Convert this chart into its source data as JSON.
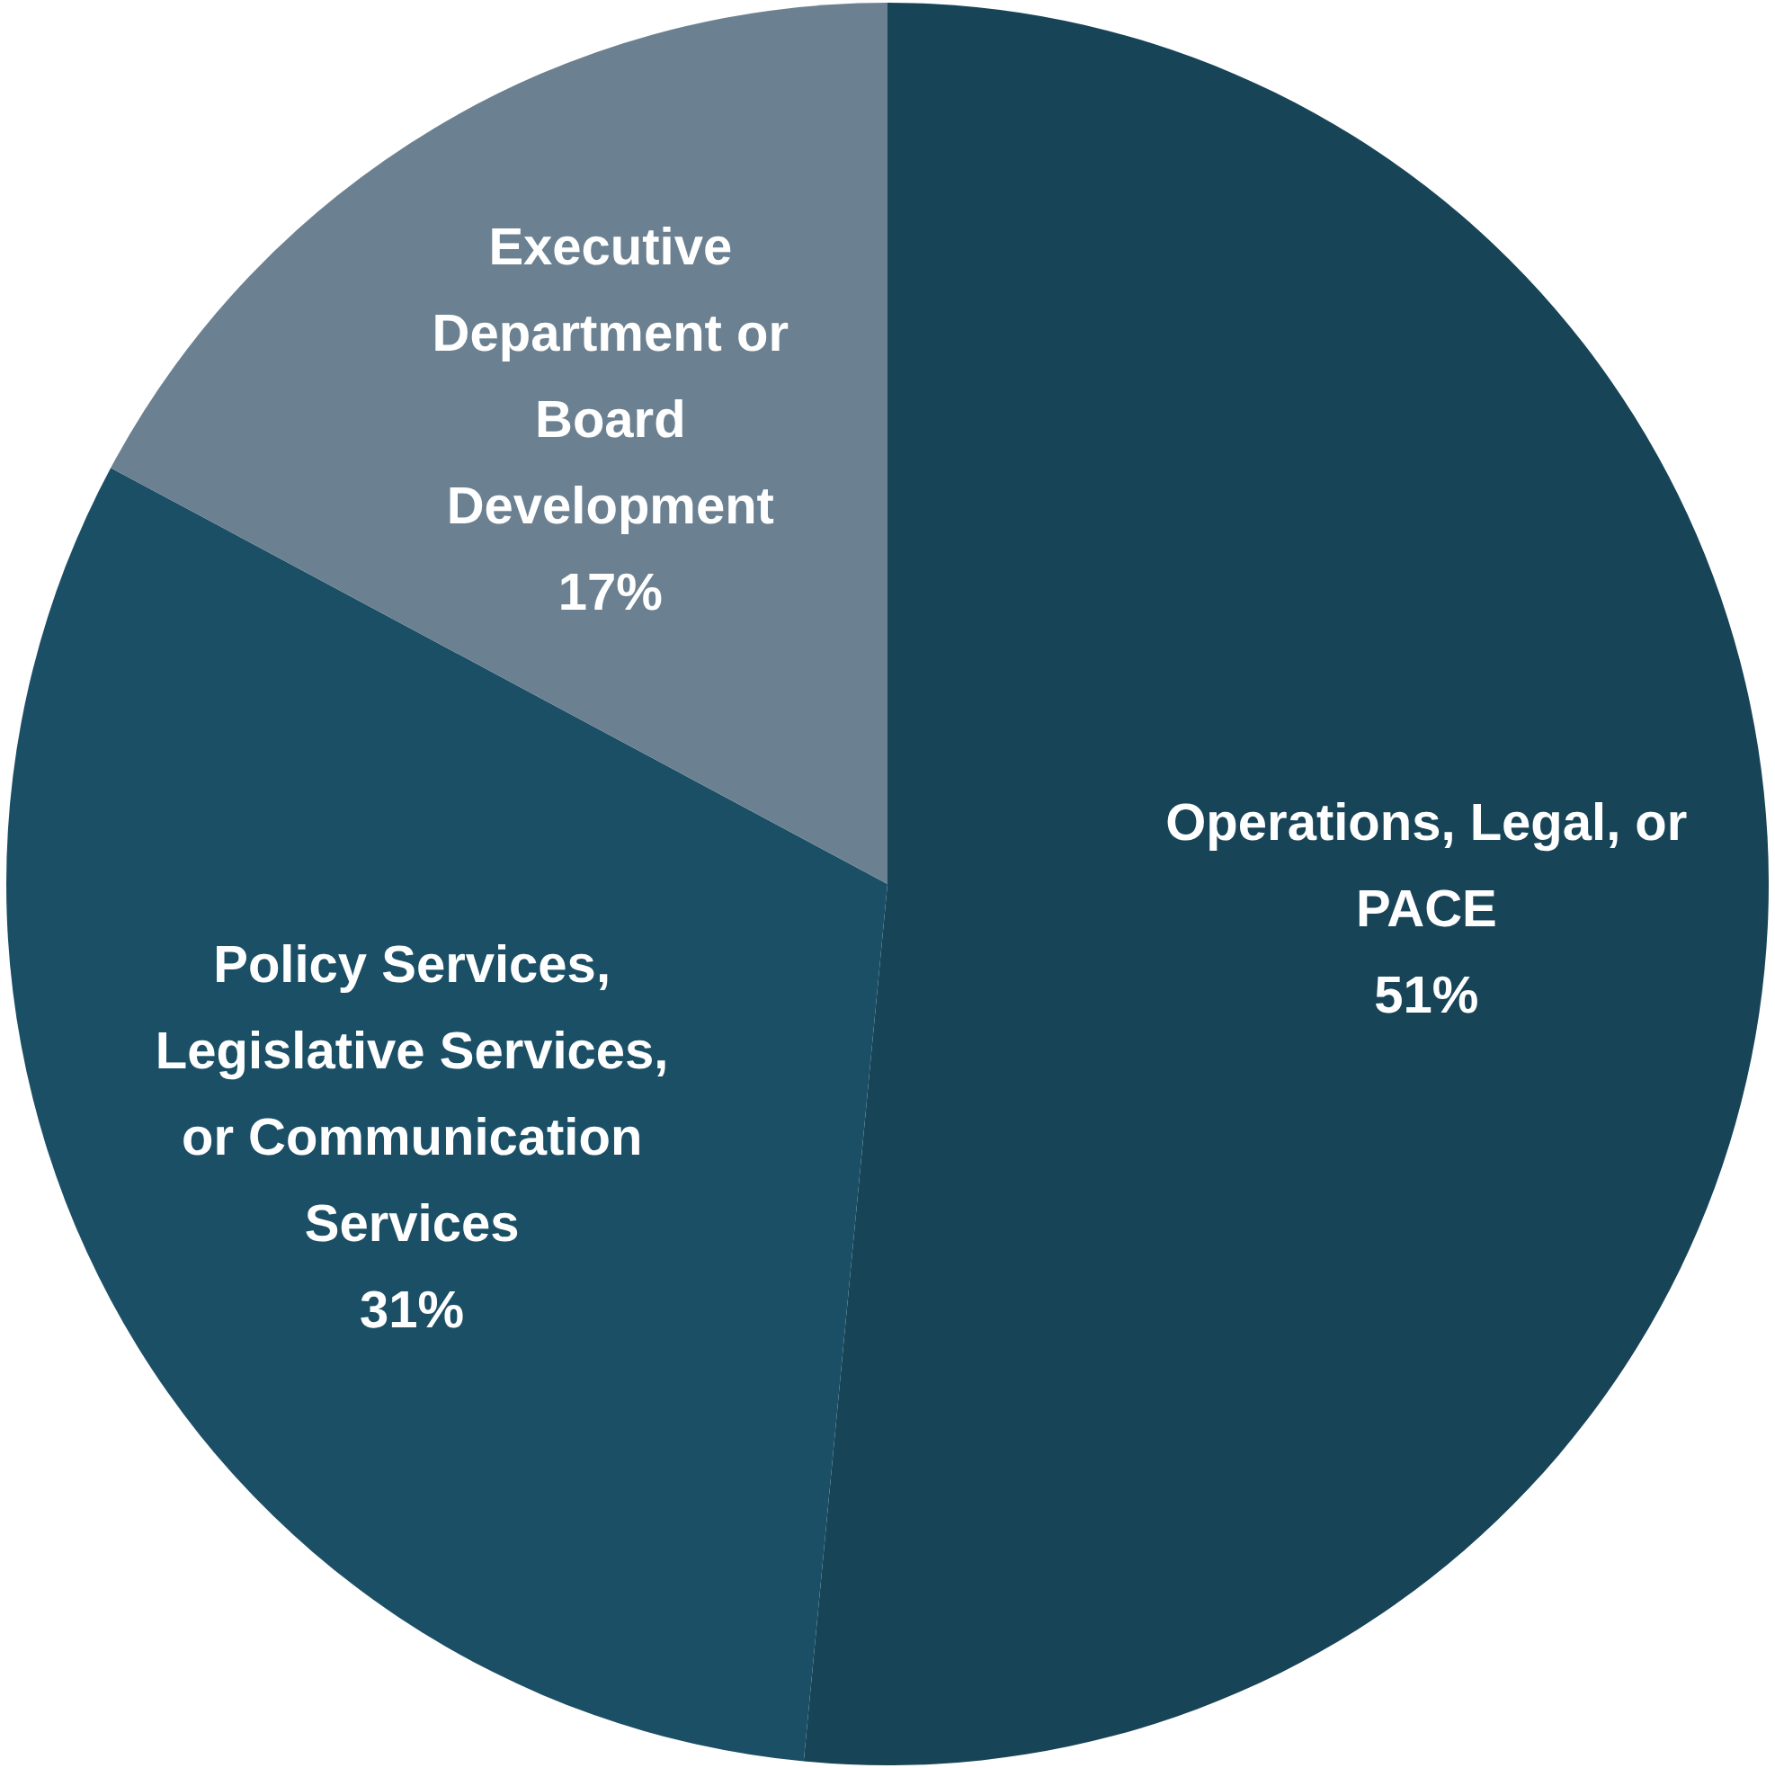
{
  "chart_data": {
    "type": "pie",
    "categories": [
      "Operations, Legal, or PACE",
      "Policy Services, Legislative Services, or Communication Services",
      "Executive Department or Board Development"
    ],
    "values": [
      51,
      31,
      17
    ],
    "colors": [
      "#174457",
      "#1b4f66",
      "#6b8090"
    ],
    "value_labels": [
      "51%",
      "31%",
      "17%"
    ]
  }
}
